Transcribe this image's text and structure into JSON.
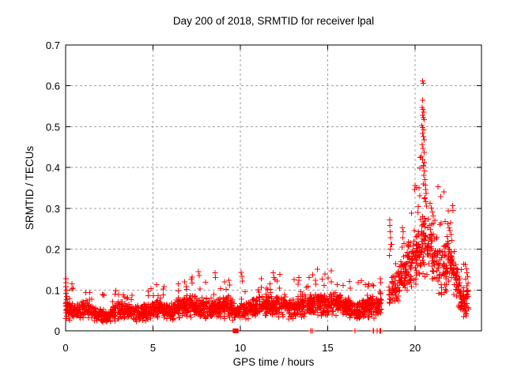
{
  "chart_data": {
    "type": "scatter",
    "title": "Day 200 of 2018, SRMTID for receiver lpal",
    "xlabel": "GPS time / hours",
    "ylabel": "SRMTID / TECUs",
    "xlim": [
      0,
      23.8
    ],
    "ylim": [
      0,
      0.7
    ],
    "xtick_values": [
      0,
      5,
      10,
      15,
      20
    ],
    "xtick_labels": [
      "0",
      "5",
      "10",
      "15",
      "20"
    ],
    "ytick_values": [
      0,
      0.1,
      0.2,
      0.3,
      0.4,
      0.5,
      0.6,
      0.7
    ],
    "ytick_labels": [
      "0",
      "0.1",
      "0.2",
      "0.3",
      "0.4",
      "0.5",
      "0.6",
      "0.7"
    ],
    "grid": true,
    "legend": "none",
    "marker": "plus",
    "colors": {
      "points": "#ff0000",
      "axis": "#000000",
      "grid": "#a0a0a0",
      "background": "#ffffff",
      "text": "#000000"
    },
    "scatter": {
      "seed": 200,
      "count": 2500,
      "trange": [
        0,
        23.05
      ],
      "gaps": [
        [
          18.08,
          18.45
        ]
      ],
      "spike_prob": 0.035,
      "band": [
        [
          0.0,
          0.06,
          0.04
        ],
        [
          0.4,
          0.05,
          0.025
        ],
        [
          0.9,
          0.048,
          0.024
        ],
        [
          1.2,
          0.055,
          0.028
        ],
        [
          1.6,
          0.042,
          0.02
        ],
        [
          2.0,
          0.04,
          0.02
        ],
        [
          2.5,
          0.038,
          0.02
        ],
        [
          2.9,
          0.047,
          0.025
        ],
        [
          3.3,
          0.05,
          0.026
        ],
        [
          3.7,
          0.044,
          0.022
        ],
        [
          4.1,
          0.042,
          0.021
        ],
        [
          4.5,
          0.046,
          0.023
        ],
        [
          5.0,
          0.05,
          0.026
        ],
        [
          5.4,
          0.054,
          0.028
        ],
        [
          5.8,
          0.046,
          0.023
        ],
        [
          6.2,
          0.052,
          0.027
        ],
        [
          6.6,
          0.06,
          0.03
        ],
        [
          7.0,
          0.064,
          0.033
        ],
        [
          7.35,
          0.06,
          0.034
        ],
        [
          7.7,
          0.052,
          0.03
        ],
        [
          8.1,
          0.055,
          0.029
        ],
        [
          8.5,
          0.06,
          0.032
        ],
        [
          8.9,
          0.057,
          0.03
        ],
        [
          9.3,
          0.06,
          0.033
        ],
        [
          9.7,
          0.046,
          0.022
        ],
        [
          10.1,
          0.05,
          0.024
        ],
        [
          10.5,
          0.052,
          0.026
        ],
        [
          10.9,
          0.057,
          0.028
        ],
        [
          11.3,
          0.062,
          0.031
        ],
        [
          11.7,
          0.058,
          0.029
        ],
        [
          12.1,
          0.06,
          0.031
        ],
        [
          12.5,
          0.062,
          0.032
        ],
        [
          12.9,
          0.057,
          0.029
        ],
        [
          13.3,
          0.06,
          0.031
        ],
        [
          13.7,
          0.063,
          0.031
        ],
        [
          14.1,
          0.066,
          0.033
        ],
        [
          14.5,
          0.068,
          0.034
        ],
        [
          14.9,
          0.063,
          0.031
        ],
        [
          15.3,
          0.068,
          0.034
        ],
        [
          15.7,
          0.07,
          0.034
        ],
        [
          16.1,
          0.06,
          0.03
        ],
        [
          16.5,
          0.048,
          0.025
        ],
        [
          16.9,
          0.055,
          0.028
        ],
        [
          17.3,
          0.062,
          0.032
        ],
        [
          17.7,
          0.058,
          0.031
        ],
        [
          18.05,
          0.068,
          0.036
        ],
        [
          18.5,
          0.09,
          0.045
        ],
        [
          18.9,
          0.105,
          0.05
        ],
        [
          19.3,
          0.135,
          0.06
        ],
        [
          19.7,
          0.165,
          0.07
        ],
        [
          20.1,
          0.19,
          0.085
        ],
        [
          20.5,
          0.21,
          0.09
        ],
        [
          20.9,
          0.195,
          0.085
        ],
        [
          21.2,
          0.175,
          0.075
        ],
        [
          21.5,
          0.15,
          0.08
        ],
        [
          21.8,
          0.165,
          0.07
        ],
        [
          22.05,
          0.18,
          0.065
        ],
        [
          22.35,
          0.13,
          0.06
        ],
        [
          22.6,
          0.08,
          0.05
        ],
        [
          22.85,
          0.06,
          0.04
        ],
        [
          23.05,
          0.095,
          0.05
        ]
      ],
      "outliers": [
        [
          0.02,
          0.128
        ],
        [
          0.03,
          0.118
        ],
        [
          0.02,
          0.108
        ],
        [
          0.05,
          0.1
        ],
        [
          0.03,
          0.092
        ],
        [
          0.06,
          0.084
        ],
        [
          0.04,
          0.076
        ],
        [
          0.02,
          0.068
        ],
        [
          0.05,
          0.06
        ],
        [
          0.08,
          0.052
        ],
        [
          0.03,
          0.044
        ],
        [
          0.06,
          0.036
        ],
        [
          0.04,
          0.03
        ],
        [
          1.15,
          0.094
        ],
        [
          2.82,
          0.09
        ],
        [
          3.3,
          0.088
        ],
        [
          5.3,
          0.086
        ],
        [
          6.45,
          0.098
        ],
        [
          6.9,
          0.108
        ],
        [
          7.2,
          0.127
        ],
        [
          7.25,
          0.117
        ],
        [
          7.6,
          0.145
        ],
        [
          7.64,
          0.135
        ],
        [
          8.55,
          0.142
        ],
        [
          8.58,
          0.131
        ],
        [
          9.1,
          0.12
        ],
        [
          9.35,
          0.124
        ],
        [
          9.38,
          0.112
        ],
        [
          10.05,
          0.143
        ],
        [
          10.08,
          0.133
        ],
        [
          10.12,
          0.122
        ],
        [
          11.2,
          0.106
        ],
        [
          11.88,
          0.142
        ],
        [
          11.92,
          0.131
        ],
        [
          12.1,
          0.122
        ],
        [
          13.3,
          0.114
        ],
        [
          14.3,
          0.124
        ],
        [
          14.33,
          0.114
        ],
        [
          15.2,
          0.12
        ],
        [
          15.55,
          0.113
        ],
        [
          16.3,
          0.104
        ],
        [
          17.3,
          0.108
        ],
        [
          18.0,
          0.128
        ],
        [
          18.02,
          0.118
        ],
        [
          18.55,
          0.272
        ],
        [
          18.56,
          0.258
        ],
        [
          18.58,
          0.243
        ],
        [
          18.6,
          0.228
        ],
        [
          18.62,
          0.212
        ],
        [
          18.57,
          0.2
        ],
        [
          18.53,
          0.185
        ],
        [
          19.28,
          0.252
        ],
        [
          19.33,
          0.243
        ],
        [
          19.3,
          0.228
        ],
        [
          19.37,
          0.214
        ],
        [
          19.25,
          0.205
        ],
        [
          20.42,
          0.612
        ],
        [
          20.47,
          0.606
        ],
        [
          20.44,
          0.565
        ],
        [
          20.4,
          0.547
        ],
        [
          20.46,
          0.542
        ],
        [
          20.5,
          0.536
        ],
        [
          20.42,
          0.528
        ],
        [
          20.47,
          0.522
        ],
        [
          20.52,
          0.517
        ],
        [
          20.38,
          0.503
        ],
        [
          20.44,
          0.498
        ],
        [
          20.49,
          0.492
        ],
        [
          20.42,
          0.483
        ],
        [
          20.47,
          0.476
        ],
        [
          20.52,
          0.468
        ],
        [
          20.41,
          0.456
        ],
        [
          20.46,
          0.447
        ],
        [
          20.51,
          0.437
        ],
        [
          20.37,
          0.427
        ],
        [
          20.44,
          0.42
        ],
        [
          20.53,
          0.412
        ],
        [
          20.48,
          0.402
        ],
        [
          20.54,
          0.392
        ],
        [
          20.5,
          0.381
        ],
        [
          20.56,
          0.37
        ],
        [
          20.58,
          0.357
        ],
        [
          20.6,
          0.346
        ],
        [
          20.63,
          0.336
        ],
        [
          20.57,
          0.326
        ],
        [
          20.62,
          0.316
        ],
        [
          20.66,
          0.306
        ],
        [
          20.3,
          0.424
        ],
        [
          20.28,
          0.398
        ],
        [
          20.22,
          0.35
        ],
        [
          20.26,
          0.331
        ],
        [
          20.18,
          0.305
        ],
        [
          20.15,
          0.29
        ],
        [
          20.85,
          0.312
        ],
        [
          20.92,
          0.301
        ],
        [
          21.0,
          0.291
        ],
        [
          21.05,
          0.281
        ],
        [
          21.12,
          0.271
        ],
        [
          20.95,
          0.261
        ],
        [
          21.88,
          0.262
        ],
        [
          21.94,
          0.252
        ],
        [
          22.0,
          0.246
        ],
        [
          22.05,
          0.236
        ],
        [
          21.83,
          0.231
        ],
        [
          22.1,
          0.221
        ],
        [
          21.9,
          0.214
        ],
        [
          22.88,
          0.162
        ],
        [
          22.93,
          0.152
        ],
        [
          22.97,
          0.142
        ],
        [
          23.0,
          0.132
        ],
        [
          22.9,
          0.127
        ],
        [
          23.02,
          0.117
        ]
      ],
      "zero_points": [
        14.02,
        14.12,
        16.55,
        17.6,
        17.63,
        17.82,
        17.98,
        18.03
      ],
      "square_points": [
        [
          9.7,
          0
        ],
        [
          9.76,
          0
        ]
      ]
    }
  }
}
